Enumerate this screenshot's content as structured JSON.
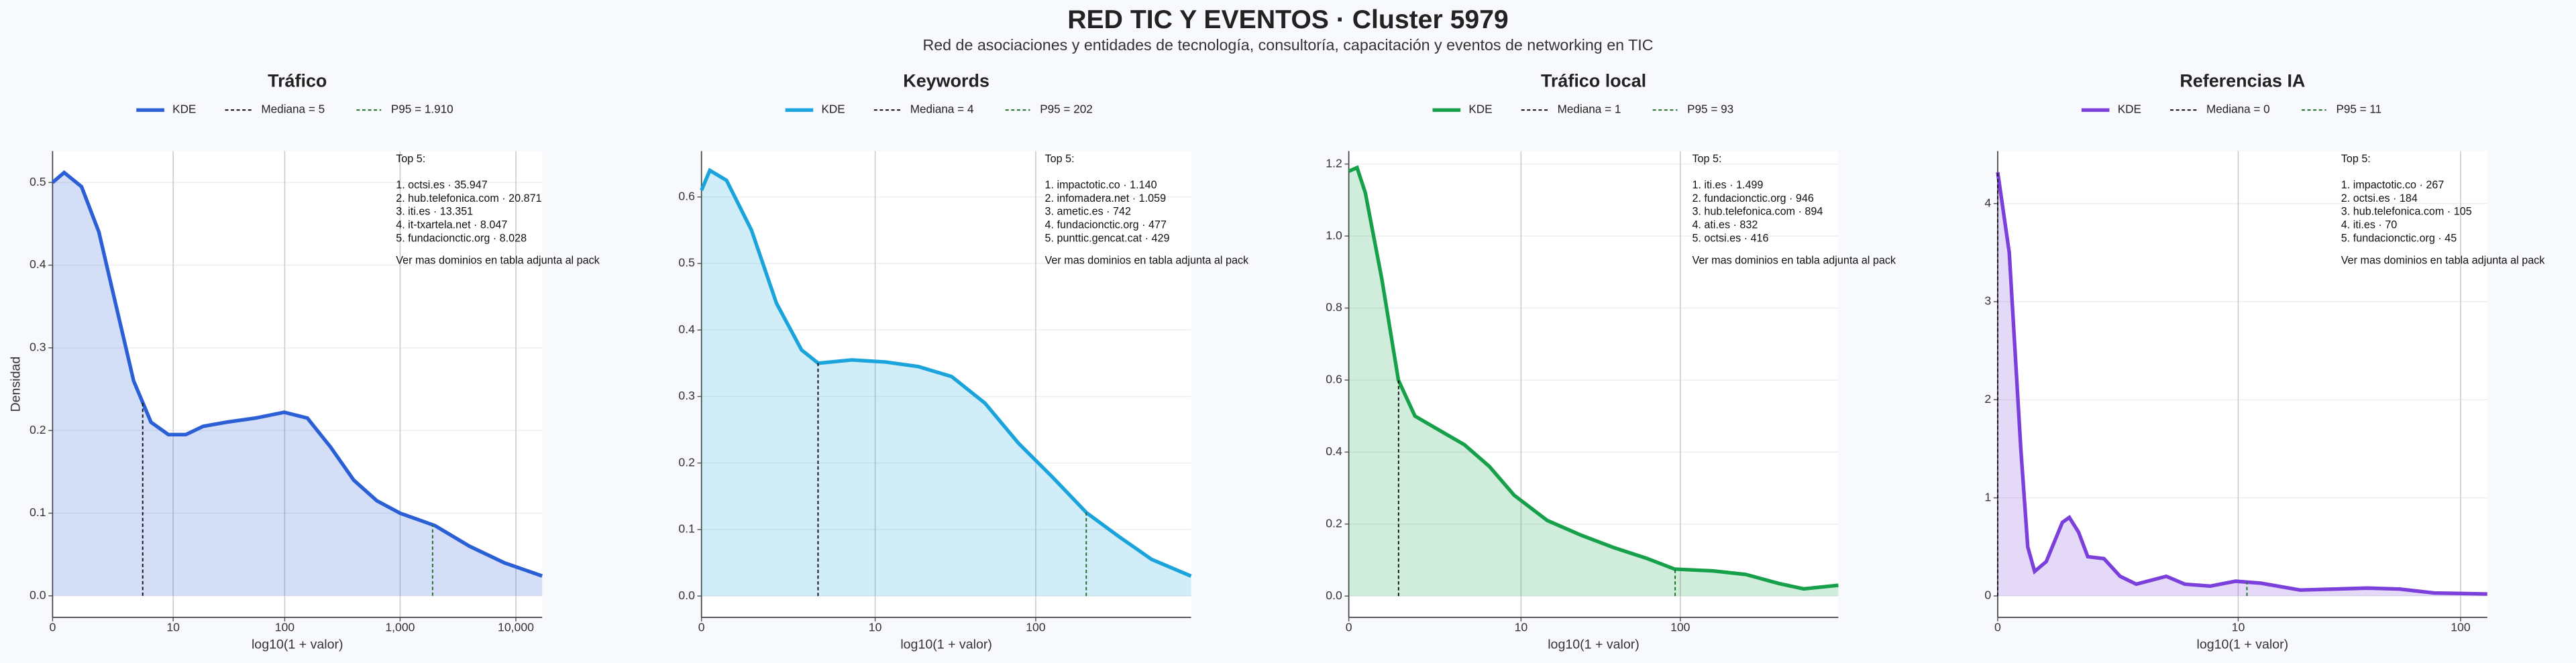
{
  "title": "RED TIC Y EVENTOS · Cluster 5979",
  "subtitle": "Red de asociaciones y entidades de tecnología, consultoría, capacitación y eventos de networking en TIC",
  "chart_data": [
    {
      "type": "area",
      "title": "Tráfico",
      "xlabel": "log10(1 + valor)",
      "ylabel": "Densidad",
      "xscale": "log1p",
      "grid": true,
      "xlim": [
        0,
        16860
      ],
      "xticks": [
        0,
        10,
        100,
        {
          "value": 1000,
          "label": "1,000"
        },
        {
          "value": 10000,
          "label": "10,000"
        }
      ],
      "ylim": [
        -0.026,
        0.538
      ],
      "yticks": [
        {
          "value": 0,
          "label": "0.0"
        },
        0.1,
        0.2,
        0.3,
        0.4,
        0.5
      ],
      "series": [
        {
          "name": "KDE",
          "color": "#2a5fd6",
          "x": [
            0,
            0.259,
            0.778,
            1.512,
            2.548,
            4.012,
            6.079,
            9,
            13.13,
            18.95,
            30.62,
            55.23,
            99,
            157.5,
            250.2,
            397.1,
            630,
            999,
            1994,
            3980,
            7942,
            16860
          ],
          "values": [
            0.5,
            0.512,
            0.495,
            0.44,
            0.35,
            0.26,
            0.21,
            0.195,
            0.195,
            0.205,
            0.21,
            0.215,
            0.222,
            0.215,
            0.18,
            0.14,
            0.115,
            0.1,
            0.085,
            0.06,
            0.04,
            0.024
          ]
        }
      ],
      "median": {
        "name": "Mediana = 5",
        "value": 5,
        "color": "#111111"
      },
      "p95": {
        "name": "P95 = 1.910",
        "value": 1910,
        "color": "#1f6e2a"
      },
      "annotation": {
        "heading": "Top 5:",
        "items": [
          "1. octsi.es · 35.947",
          "2. hub.telefonica.com · 20.871",
          "3. iti.es · 13.351",
          "4. it-txartela.net · 8.047",
          "5. fundacionctic.org · 8.028"
        ],
        "footer": "Ver mas dominios en tabla adjunta al pack"
      }
    },
    {
      "type": "area",
      "title": "Keywords",
      "xlabel": "log10(1 + valor)",
      "xscale": "log1p",
      "grid": true,
      "xlim": [
        0,
        862
      ],
      "xticks": [
        0,
        10,
        100
      ],
      "ylim": [
        -0.032,
        0.669
      ],
      "yticks": [
        {
          "value": 0,
          "label": "0.0"
        },
        0.1,
        0.2,
        0.3,
        0.4,
        0.5,
        0.6
      ],
      "series": [
        {
          "name": "KDE",
          "color": "#1ba3dc",
          "x": [
            0,
            0.122,
            0.413,
            0.995,
            1.818,
            2.981,
            4.012,
            6.943,
            11.59,
            18.95,
            30.62,
            49.12,
            78.43,
            124.9,
            203.2,
            315.2,
            500.2,
            862
          ],
          "values": [
            0.61,
            0.64,
            0.625,
            0.55,
            0.44,
            0.37,
            0.35,
            0.355,
            0.352,
            0.345,
            0.33,
            0.29,
            0.23,
            0.18,
            0.125,
            0.09,
            0.055,
            0.03
          ]
        }
      ],
      "median": {
        "name": "Mediana = 4",
        "value": 4,
        "color": "#111111"
      },
      "p95": {
        "name": "P95 = 202",
        "value": 202,
        "color": "#1f6e2a"
      },
      "annotation": {
        "heading": "Top 5:",
        "items": [
          "1. impactotic.co · 1.140",
          "2. infomadera.net · 1.059",
          "3. ametic.es · 742",
          "4. fundacionctic.org · 477",
          "5. punttic.gencat.cat · 429"
        ],
        "footer": "Ver mas dominios en tabla adjunta al pack"
      }
    },
    {
      "type": "area",
      "title": "Tráfico local",
      "xlabel": "log10(1 + valor)",
      "xscale": "log1p",
      "grid": true,
      "xlim": [
        0,
        911
      ],
      "xticks": [
        0,
        10,
        100
      ],
      "ylim": [
        -0.059,
        1.236
      ],
      "yticks": [
        {
          "value": 0,
          "label": "0.0"
        },
        0.2,
        0.4,
        0.6,
        0.8,
        {
          "value": 1,
          "label": "1.0"
        },
        1.2
      ],
      "series": [
        {
          "name": "KDE",
          "color": "#16a04a",
          "x": [
            0,
            0.122,
            0.259,
            0.585,
            0.995,
            1.512,
            2.548,
            4.012,
            6.079,
            9,
            14.85,
            24.12,
            38.81,
            62.1,
            92.3,
            157.5,
            250.2,
            397.1,
            561.3,
            911
          ],
          "values": [
            1.18,
            1.19,
            1.12,
            0.88,
            0.6,
            0.5,
            0.46,
            0.42,
            0.36,
            0.28,
            0.21,
            0.17,
            0.135,
            0.105,
            0.075,
            0.07,
            0.06,
            0.035,
            0.02,
            0.03
          ]
        }
      ],
      "median": {
        "name": "Mediana = 1",
        "value": 1,
        "color": "#111111"
      },
      "p95": {
        "name": "P95 = 93",
        "value": 93,
        "color": "#1f6e2a"
      },
      "annotation": {
        "heading": "Top 5:",
        "items": [
          "1. iti.es · 1.499",
          "2. fundacionctic.org · 946",
          "3. hub.telefonica.com · 894",
          "4. ati.es · 832",
          "5. octsi.es · 416"
        ],
        "footer": "Ver mas dominios en tabla adjunta al pack"
      }
    },
    {
      "type": "area",
      "title": "Referencias IA",
      "xlabel": "log10(1 + valor)",
      "xscale": "log1p",
      "grid": true,
      "xlim": [
        0,
        130.8
      ],
      "xticks": [
        0,
        10,
        100
      ],
      "ylim": [
        -0.218,
        4.535
      ],
      "yticks": [
        0,
        1,
        2,
        3,
        4
      ],
      "series": [
        {
          "name": "KDE",
          "color": "#7b3fdc",
          "x": [
            0,
            0.122,
            0.259,
            0.349,
            0.445,
            0.622,
            0.905,
            1.042,
            1.239,
            1.455,
            1.884,
            2.388,
            2.981,
            4.37,
            5.457,
            7.318,
            9.715,
            12.8,
            19.42,
            38.81,
            53.95,
            76.62,
            130.8
          ],
          "values": [
            4.32,
            3.5,
            1.5,
            0.5,
            0.25,
            0.35,
            0.75,
            0.8,
            0.65,
            0.4,
            0.38,
            0.2,
            0.12,
            0.2,
            0.12,
            0.1,
            0.15,
            0.13,
            0.06,
            0.08,
            0.07,
            0.03,
            0.02
          ]
        }
      ],
      "median": {
        "name": "Mediana = 0",
        "value": 0,
        "color": "#111111"
      },
      "p95": {
        "name": "P95 = 11",
        "value": 11,
        "color": "#1f6e2a"
      },
      "annotation": {
        "heading": "Top 5:",
        "items": [
          "1. impactotic.co · 267",
          "2. octsi.es · 184",
          "3. hub.telefonica.com · 105",
          "4. iti.es · 70",
          "5. fundacionctic.org · 45"
        ],
        "footer": "Ver mas dominios en tabla adjunta al pack"
      }
    }
  ]
}
